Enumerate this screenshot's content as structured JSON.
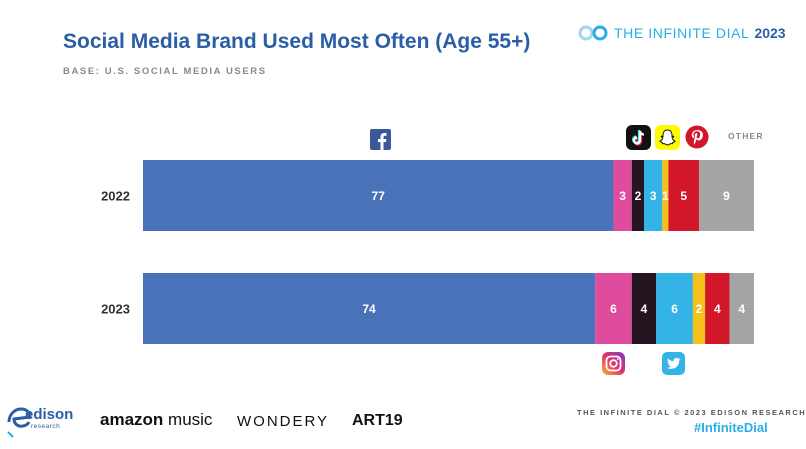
{
  "header": {
    "title": "Social Media Brand Used Most Often (Age 55+)",
    "subtitle": "BASE: U.S. SOCIAL MEDIA USERS",
    "brand_text": "THE INFINITE DIAL",
    "brand_year": "2023"
  },
  "chart_data": {
    "type": "bar",
    "orientation": "horizontal-stacked-100",
    "categories": [
      "2022",
      "2023"
    ],
    "series": [
      {
        "name": "Facebook",
        "icon": "facebook-icon",
        "color": "#4a72b9",
        "values": [
          77,
          74
        ]
      },
      {
        "name": "Instagram",
        "icon": "instagram-icon",
        "color": "#e04c9d",
        "values": [
          3,
          6
        ]
      },
      {
        "name": "TikTok",
        "icon": "tiktok-icon",
        "color": "#241521",
        "values": [
          2,
          4
        ]
      },
      {
        "name": "Twitter",
        "icon": "twitter-icon",
        "color": "#34b3e7",
        "values": [
          3,
          6
        ]
      },
      {
        "name": "Snapchat",
        "icon": "snapchat-icon",
        "color": "#f6c01b",
        "values": [
          1,
          2
        ]
      },
      {
        "name": "Pinterest",
        "icon": "pinterest-icon",
        "color": "#d2172a",
        "values": [
          5,
          4
        ]
      },
      {
        "name": "OTHER",
        "color": "#a5a5a5",
        "values": [
          9,
          4
        ]
      }
    ],
    "legend": "icons above/below bars"
  },
  "footer": {
    "credit": "THE INFINITE DIAL  © 2023 EDISON RESEARCH",
    "hashtag": "#InfiniteDial",
    "sponsors": {
      "edison": "edison",
      "edison_sub": "research",
      "amazon": "amazon",
      "amazon_music": "music",
      "wondery": "WONDERY",
      "art19": "ART19"
    }
  }
}
